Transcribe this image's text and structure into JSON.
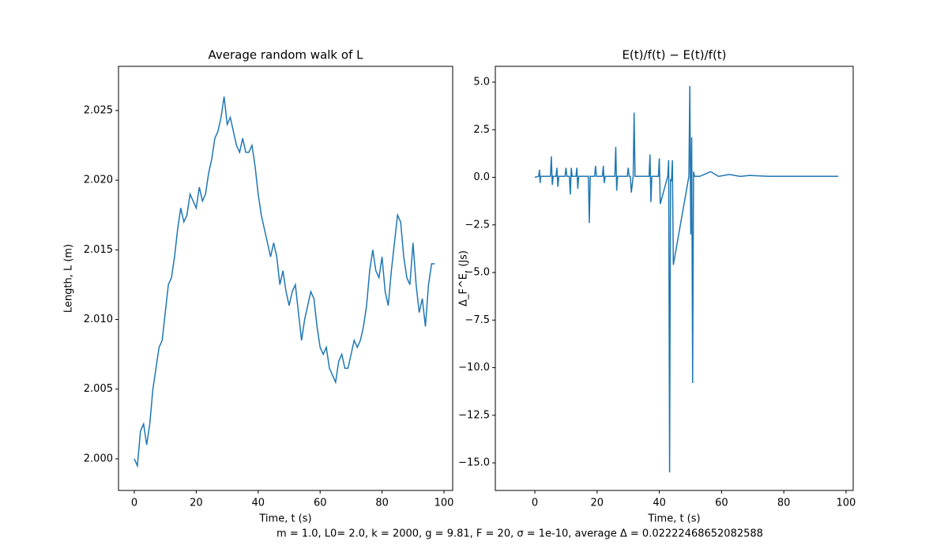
{
  "chart_data": [
    {
      "type": "line",
      "title": "Average random walk of L",
      "xlabel": "Time, t (s)",
      "ylabel": "Length, L (m)",
      "xlim": [
        -5.1,
        102.8
      ],
      "ylim": [
        1.99773,
        2.02817
      ],
      "xticks": [
        0,
        20,
        40,
        60,
        80,
        100
      ],
      "yticks": [
        {
          "value": 2.0,
          "label": "2.000"
        },
        {
          "value": 2.005,
          "label": "2.005"
        },
        {
          "value": 2.01,
          "label": "2.010"
        },
        {
          "value": 2.015,
          "label": "2.015"
        },
        {
          "value": 2.02,
          "label": "2.020"
        },
        {
          "value": 2.025,
          "label": "2.025"
        }
      ],
      "x": [
        0,
        1,
        2,
        3,
        4,
        5,
        6,
        7,
        8,
        9,
        10,
        11,
        12,
        13,
        14,
        15,
        16,
        17,
        18,
        19,
        20,
        21,
        22,
        23,
        24,
        25,
        26,
        27,
        28,
        29,
        30,
        31,
        32,
        33,
        34,
        35,
        36,
        37,
        38,
        39,
        40,
        41,
        42,
        43,
        44,
        45,
        46,
        47,
        48,
        49,
        50,
        51,
        52,
        53,
        54,
        55,
        56,
        57,
        58,
        59,
        60,
        61,
        62,
        63,
        64,
        65,
        66,
        67,
        68,
        69,
        70,
        71,
        72,
        73,
        74,
        75,
        76,
        77,
        78,
        79,
        80,
        81,
        82,
        83,
        84,
        85,
        86,
        87,
        88,
        89,
        90,
        91,
        92,
        93,
        94,
        95,
        96,
        97
      ],
      "series": [
        {
          "color": "#1f77b4",
          "values": [
            2.0,
            1.9995,
            2.002,
            2.0025,
            2.001,
            2.0025,
            2.005,
            2.0065,
            2.008,
            2.0085,
            2.0105,
            2.0125,
            2.013,
            2.0145,
            2.0165,
            2.018,
            2.017,
            2.0175,
            2.019,
            2.0185,
            2.018,
            2.0195,
            2.0185,
            2.019,
            2.0205,
            2.0215,
            2.023,
            2.0235,
            2.0245,
            2.026,
            2.024,
            2.0245,
            2.0235,
            2.0225,
            2.022,
            2.023,
            2.022,
            2.022,
            2.0225,
            2.021,
            2.019,
            2.0175,
            2.0165,
            2.0155,
            2.0145,
            2.0155,
            2.0145,
            2.0125,
            2.0135,
            2.012,
            2.011,
            2.012,
            2.0125,
            2.0105,
            2.0085,
            2.01,
            2.011,
            2.012,
            2.0115,
            2.0095,
            2.008,
            2.0075,
            2.008,
            2.0065,
            2.006,
            2.0055,
            2.007,
            2.0075,
            2.0065,
            2.0065,
            2.0075,
            2.0085,
            2.008,
            2.0085,
            2.0095,
            2.011,
            2.0135,
            2.015,
            2.0135,
            2.013,
            2.0145,
            2.012,
            2.011,
            2.0135,
            2.0155,
            2.0175,
            2.017,
            2.0145,
            2.013,
            2.0125,
            2.0155,
            2.0125,
            2.0105,
            2.0115,
            2.0095,
            2.0125,
            2.014,
            2.014
          ]
        }
      ]
    },
    {
      "type": "line",
      "title": "E(t)/f(t) − E(t)/f(t)",
      "xlabel": "Time, t (s)",
      "ylabel": "Δ_F^E, (Js)",
      "xlim": [
        -12.7,
        102.3
      ],
      "ylim": [
        -16.45,
        5.83
      ],
      "xticks": [
        0,
        20,
        40,
        60,
        80,
        100
      ],
      "yticks": [
        {
          "value": 5.0,
          "label": "5.0"
        },
        {
          "value": 2.5,
          "label": "2.5"
        },
        {
          "value": 0.0,
          "label": "0.0"
        },
        {
          "value": -2.5,
          "label": "−2.5"
        },
        {
          "value": -5.0,
          "label": "−5.0"
        },
        {
          "value": -7.5,
          "label": "−7.5"
        },
        {
          "value": -10.0,
          "label": "−10.0"
        },
        {
          "value": -12.5,
          "label": "−12.5"
        },
        {
          "value": -15.0,
          "label": "−15.0"
        }
      ],
      "x": [
        0,
        1.2,
        1.5,
        1.7,
        1.9,
        2.2,
        5,
        5.3,
        5.6,
        5.9,
        6.2,
        6.8,
        7.1,
        7.4,
        7.7,
        9.7,
        10,
        10.3,
        11.1,
        11.4,
        11.7,
        12,
        13.2,
        13.5,
        13.8,
        14.1,
        17.2,
        17.5,
        17.8,
        19.2,
        19.5,
        19.8,
        21.7,
        22,
        22.3,
        22.6,
        25.7,
        26,
        26.3,
        26.6,
        29.7,
        30,
        30.3,
        30.7,
        31,
        31.6,
        31.9,
        32.2,
        32.5,
        36.7,
        37,
        37.3,
        37.6,
        37.9,
        39.7,
        40,
        40.3,
        42.7,
        43,
        43.3,
        43.6,
        43.9,
        44.2,
        44.5,
        49.5,
        49.8,
        50.1,
        50.4,
        50.7,
        51,
        51.3,
        53,
        56.5,
        59,
        62.5,
        66,
        69,
        75,
        97.5
      ],
      "series": [
        {
          "color": "#1f77b4",
          "values": [
            0,
            0.05,
            0.4,
            -0.3,
            0.05,
            0.05,
            0.05,
            1.1,
            -0.4,
            0.05,
            0.05,
            0.05,
            0.5,
            -0.5,
            0.05,
            0.05,
            0.5,
            0.05,
            0.05,
            -0.9,
            0.5,
            0.05,
            0.05,
            0.5,
            -0.6,
            0.05,
            0.05,
            -2.4,
            0.05,
            0.05,
            0.6,
            0.05,
            0.05,
            0.6,
            -0.3,
            0.05,
            0.05,
            1.6,
            -0.7,
            0.05,
            0.05,
            0.5,
            0.05,
            0.05,
            -0.8,
            0.05,
            3.4,
            0.05,
            0.05,
            0.05,
            1.2,
            -1.3,
            0.05,
            0.05,
            0.05,
            1.0,
            -1.4,
            0.05,
            0.9,
            -15.5,
            -0.1,
            -0.2,
            0.9,
            -4.6,
            0.05,
            4.8,
            -3.0,
            2.1,
            -10.8,
            0.3,
            0.05,
            0.05,
            0.3,
            0.05,
            0.15,
            0.05,
            0.1,
            0.05,
            0.05
          ]
        }
      ]
    }
  ],
  "caption": "m = 1.0, L0= 2.0, k = 2000, g = 9.81, F = 20, σ = 1e-10, average Δ = 0.02222468652082588"
}
